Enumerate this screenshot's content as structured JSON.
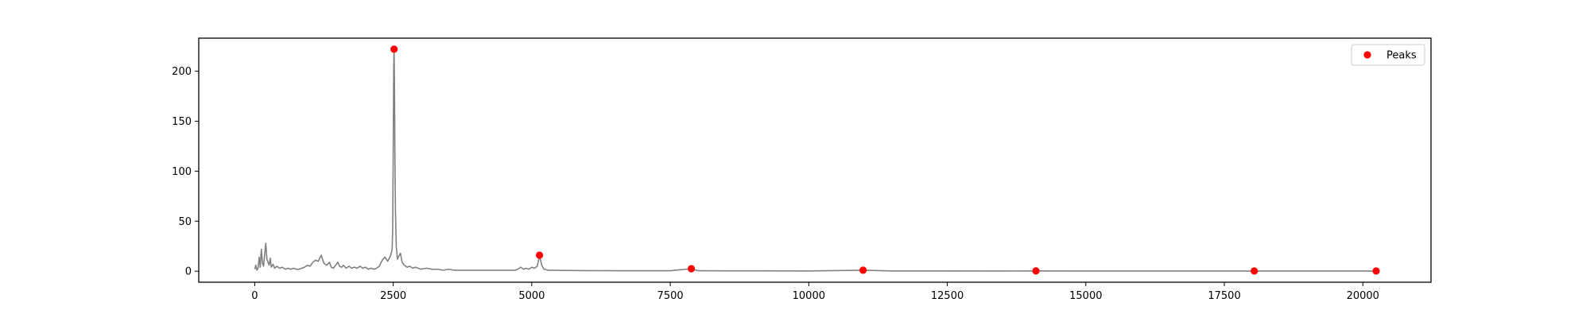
{
  "chart_data": {
    "type": "line",
    "title": "",
    "xlabel": "",
    "ylabel": "",
    "xlim": [
      -1010,
      21230
    ],
    "ylim": [
      -11,
      233
    ],
    "xticks": [
      0,
      2500,
      5000,
      7500,
      10000,
      12500,
      15000,
      17500,
      20000
    ],
    "yticks": [
      0,
      50,
      100,
      150,
      200
    ],
    "grid": false,
    "legend": {
      "placement": "top-right",
      "entries": [
        "Peaks"
      ]
    },
    "colors": {
      "spectrum": "#808080",
      "peaks": "#ff0000",
      "axes": "#000000",
      "legend_border": "#cccccc"
    },
    "series": [
      {
        "values": [
          [
            0,
            2
          ],
          [
            20,
            6
          ],
          [
            40,
            1
          ],
          [
            60,
            3
          ],
          [
            80,
            14
          ],
          [
            100,
            4
          ],
          [
            120,
            22
          ],
          [
            140,
            8
          ],
          [
            160,
            5
          ],
          [
            180,
            17
          ],
          [
            200,
            28
          ],
          [
            220,
            12
          ],
          [
            240,
            9
          ],
          [
            260,
            6
          ],
          [
            280,
            13
          ],
          [
            300,
            4
          ],
          [
            330,
            7
          ],
          [
            360,
            3
          ],
          [
            400,
            5
          ],
          [
            450,
            3
          ],
          [
            500,
            4
          ],
          [
            550,
            2
          ],
          [
            600,
            3
          ],
          [
            650,
            2
          ],
          [
            700,
            3
          ],
          [
            750,
            2
          ],
          [
            800,
            2
          ],
          [
            850,
            3
          ],
          [
            900,
            4
          ],
          [
            950,
            6
          ],
          [
            1000,
            5
          ],
          [
            1050,
            9
          ],
          [
            1100,
            11
          ],
          [
            1150,
            10
          ],
          [
            1200,
            16
          ],
          [
            1250,
            8
          ],
          [
            1300,
            6
          ],
          [
            1350,
            9
          ],
          [
            1380,
            4
          ],
          [
            1420,
            3
          ],
          [
            1460,
            6
          ],
          [
            1500,
            9
          ],
          [
            1530,
            5
          ],
          [
            1570,
            4
          ],
          [
            1600,
            6
          ],
          [
            1650,
            3
          ],
          [
            1700,
            5
          ],
          [
            1750,
            3
          ],
          [
            1800,
            4
          ],
          [
            1850,
            3
          ],
          [
            1900,
            5
          ],
          [
            1950,
            3
          ],
          [
            2000,
            4
          ],
          [
            2050,
            2
          ],
          [
            2100,
            3
          ],
          [
            2150,
            2
          ],
          [
            2200,
            3
          ],
          [
            2250,
            5
          ],
          [
            2300,
            11
          ],
          [
            2350,
            14
          ],
          [
            2400,
            10
          ],
          [
            2430,
            13
          ],
          [
            2460,
            17
          ],
          [
            2480,
            22
          ],
          [
            2490,
            40
          ],
          [
            2500,
            120
          ],
          [
            2508,
            200
          ],
          [
            2515,
            222
          ],
          [
            2522,
            190
          ],
          [
            2530,
            120
          ],
          [
            2540,
            60
          ],
          [
            2555,
            25
          ],
          [
            2575,
            12
          ],
          [
            2600,
            15
          ],
          [
            2630,
            18
          ],
          [
            2660,
            9
          ],
          [
            2700,
            6
          ],
          [
            2750,
            4
          ],
          [
            2800,
            5
          ],
          [
            2850,
            3
          ],
          [
            2900,
            4
          ],
          [
            3000,
            2
          ],
          [
            3100,
            3
          ],
          [
            3200,
            2
          ],
          [
            3300,
            2
          ],
          [
            3400,
            1
          ],
          [
            3500,
            2
          ],
          [
            3600,
            1
          ],
          [
            3700,
            1
          ],
          [
            3800,
            1
          ],
          [
            3900,
            1
          ],
          [
            4000,
            1
          ],
          [
            4100,
            1
          ],
          [
            4200,
            1
          ],
          [
            4300,
            1
          ],
          [
            4400,
            1
          ],
          [
            4500,
            1
          ],
          [
            4600,
            1
          ],
          [
            4700,
            1
          ],
          [
            4750,
            2
          ],
          [
            4800,
            4
          ],
          [
            4850,
            2
          ],
          [
            4900,
            3
          ],
          [
            4950,
            2
          ],
          [
            5000,
            4
          ],
          [
            5050,
            3
          ],
          [
            5100,
            5
          ],
          [
            5140,
            16
          ],
          [
            5180,
            6
          ],
          [
            5220,
            2
          ],
          [
            5300,
            1
          ],
          [
            5400,
            1
          ],
          [
            5600,
            0.8
          ],
          [
            6000,
            0.6
          ],
          [
            6500,
            0.5
          ],
          [
            7000,
            0.5
          ],
          [
            7500,
            0.5
          ],
          [
            7880,
            2.5
          ],
          [
            8000,
            0.5
          ],
          [
            8500,
            0.4
          ],
          [
            9000,
            0.4
          ],
          [
            10000,
            0.3
          ],
          [
            10980,
            1
          ],
          [
            11500,
            0.3
          ],
          [
            12500,
            0.3
          ],
          [
            13500,
            0.2
          ],
          [
            14100,
            0.3
          ],
          [
            15000,
            0.2
          ],
          [
            16000,
            0.2
          ],
          [
            17000,
            0.2
          ],
          [
            18040,
            0.2
          ],
          [
            19000,
            0.2
          ],
          [
            20240,
            0.2
          ]
        ]
      },
      {
        "name": "Peaks",
        "points": [
          [
            2515,
            222
          ],
          [
            5140,
            16
          ],
          [
            7880,
            2.5
          ],
          [
            10980,
            1
          ],
          [
            14100,
            0.3
          ],
          [
            18040,
            0.2
          ],
          [
            20240,
            0.2
          ]
        ]
      }
    ]
  }
}
